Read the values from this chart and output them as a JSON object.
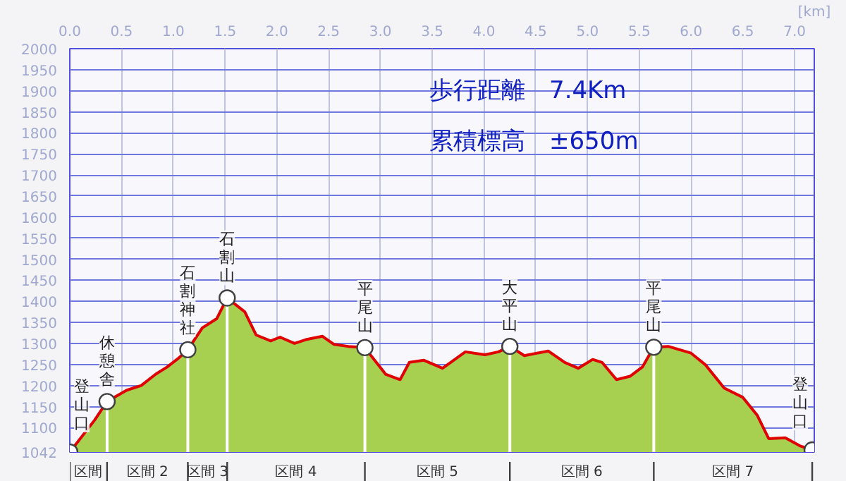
{
  "chart_data": {
    "type": "area",
    "xlabel": "[km]",
    "x": [
      0.0,
      0.24,
      0.36,
      0.55,
      0.69,
      0.83,
      0.94,
      1.05,
      1.14,
      1.28,
      1.42,
      1.52,
      1.69,
      1.8,
      1.94,
      2.03,
      2.17,
      2.28,
      2.44,
      2.55,
      2.69,
      2.85,
      2.96,
      3.05,
      3.19,
      3.28,
      3.42,
      3.6,
      3.82,
      4.01,
      4.14,
      4.25,
      4.39,
      4.62,
      4.78,
      4.91,
      5.05,
      5.14,
      5.28,
      5.41,
      5.53,
      5.64,
      5.78,
      6.0,
      6.14,
      6.32,
      6.5,
      6.64,
      6.75,
      6.91,
      7.05,
      7.17
    ],
    "series": [
      {
        "color": "#a8d050",
        "values": [
          1042,
          1118,
          1162,
          1189,
          1200,
          1227,
          1244,
          1265,
          1285,
          1337,
          1359,
          1408,
          1375,
          1320,
          1306,
          1315,
          1300,
          1309,
          1317,
          1298,
          1293,
          1290,
          1255,
          1227,
          1214,
          1255,
          1260,
          1241,
          1280,
          1273,
          1280,
          1293,
          1271,
          1282,
          1255,
          1241,
          1262,
          1255,
          1214,
          1222,
          1244,
          1291,
          1293,
          1277,
          1249,
          1194,
          1172,
          1129,
          1074,
          1076,
          1057,
          1047
        ]
      }
    ],
    "xlim": [
      0,
      7.19
    ],
    "xticks": [
      {
        "value": 0,
        "label": "0.0"
      },
      {
        "value": 0.5,
        "label": "0.5"
      },
      {
        "value": 1,
        "label": "1.0"
      },
      {
        "value": 1.5,
        "label": "1.5"
      },
      {
        "value": 2,
        "label": "2.0"
      },
      {
        "value": 2.5,
        "label": "2.5"
      },
      {
        "value": 3,
        "label": "3.0"
      },
      {
        "value": 3.5,
        "label": "3.5"
      },
      {
        "value": 4,
        "label": "4.0"
      },
      {
        "value": 4.5,
        "label": "4.5"
      },
      {
        "value": 5,
        "label": "5.0"
      },
      {
        "value": 5.5,
        "label": "5.5"
      },
      {
        "value": 6,
        "label": "6.0"
      },
      {
        "value": 6.5,
        "label": "6.5"
      },
      {
        "value": 7,
        "label": "7.0"
      }
    ],
    "ylim": [
      1042,
      2000
    ],
    "yticks": [
      1042,
      1100,
      1150,
      1200,
      1250,
      1300,
      1350,
      1400,
      1450,
      1500,
      1550,
      1600,
      1650,
      1700,
      1750,
      1800,
      1850,
      1900,
      1950,
      2000
    ],
    "grid": true,
    "annotations": [
      "歩行距離　7.4Km",
      "累積標高　±650m",
      {
        "text": "登山口",
        "x": 0.0,
        "y": 1042
      },
      {
        "text": "休憩舎",
        "x": 0.36,
        "y": 1162
      },
      {
        "text": "石割神社",
        "x": 1.14,
        "y": 1285
      },
      {
        "text": "石割山",
        "x": 1.52,
        "y": 1408
      },
      {
        "text": "平尾山",
        "x": 2.85,
        "y": 1290
      },
      {
        "text": "大平山",
        "x": 4.25,
        "y": 1293
      },
      {
        "text": "平尾山",
        "x": 5.64,
        "y": 1291
      },
      {
        "text": "登山口",
        "x": 7.17,
        "y": 1047
      },
      {
        "text": "区間",
        "x": 0.18,
        "y": 1042
      },
      {
        "text": "区間 2",
        "x": 0.75,
        "y": 1042
      },
      {
        "text": "区間 3",
        "x": 1.33,
        "y": 1042
      },
      {
        "text": "区間 4",
        "x": 2.185,
        "y": 1042
      },
      {
        "text": "区間 5",
        "x": 3.55,
        "y": 1042
      },
      {
        "text": "区間 6",
        "x": 4.945,
        "y": 1042
      },
      {
        "text": "区間 7",
        "x": 6.405,
        "y": 1042
      }
    ]
  }
}
